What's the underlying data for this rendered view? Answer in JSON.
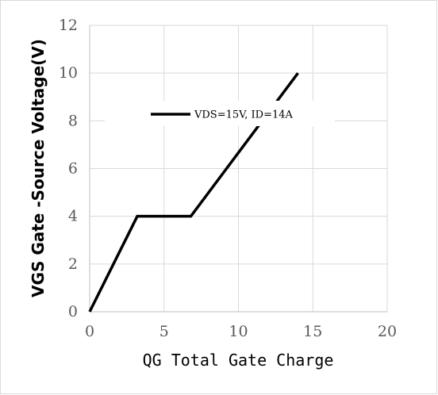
{
  "chart_data": {
    "type": "line",
    "title": "",
    "xlabel": "QG Total Gate Charge",
    "ylabel": "VGS Gate -Source Voltage(V)",
    "xlim": [
      0,
      20
    ],
    "ylim": [
      0,
      12
    ],
    "x_ticks": [
      0,
      5,
      10,
      15,
      20
    ],
    "y_ticks": [
      0,
      2,
      4,
      6,
      8,
      10,
      12
    ],
    "x_tick_labels": [
      "0",
      "5",
      "10",
      "15",
      "20"
    ],
    "y_tick_labels": [
      "0",
      "2",
      "4",
      "6",
      "8",
      "10",
      "12"
    ],
    "grid": true,
    "legend_position": "top-center",
    "series": [
      {
        "name": "VDS=15V, ID=14A",
        "color": "#000000",
        "x": [
          0,
          3.2,
          6.8,
          14
        ],
        "y": [
          0,
          4,
          4,
          10
        ]
      }
    ],
    "colors": {
      "grid": "#d9d9d9",
      "axis": "#bfbfbf",
      "series": "#000000"
    }
  }
}
